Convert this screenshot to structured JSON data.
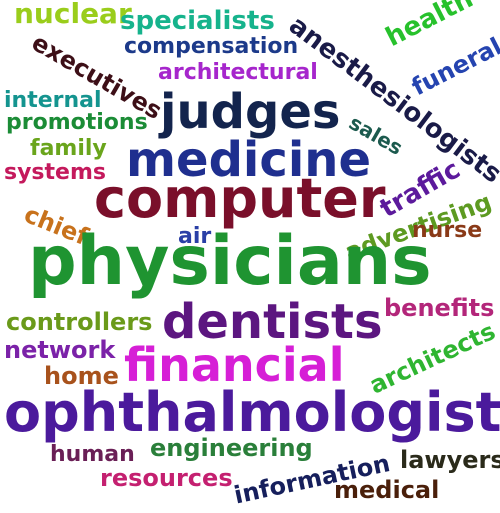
{
  "words": [
    {
      "id": "nuclear",
      "text": "nuclear",
      "color": "#9acd1b"
    },
    {
      "id": "specialists",
      "text": "specialists",
      "color": "#16b38c"
    },
    {
      "id": "health",
      "text": "health",
      "color": "#27c12c"
    },
    {
      "id": "anesthesiologists",
      "text": "anesthesiologists",
      "color": "#1a1b48"
    },
    {
      "id": "funeral",
      "text": "funeral",
      "color": "#2544b0"
    },
    {
      "id": "executives",
      "text": "executives",
      "color": "#3d0f17"
    },
    {
      "id": "compensation",
      "text": "compensation",
      "color": "#1c3a8a"
    },
    {
      "id": "architectural",
      "text": "architectural",
      "color": "#a626cc"
    },
    {
      "id": "internal",
      "text": "internal",
      "color": "#14948f"
    },
    {
      "id": "judges",
      "text": "judges",
      "color": "#13244d"
    },
    {
      "id": "promotions",
      "text": "promotions",
      "color": "#1b8c36"
    },
    {
      "id": "sales",
      "text": "sales",
      "color": "#1c5a4e"
    },
    {
      "id": "family",
      "text": "family",
      "color": "#6aa51c"
    },
    {
      "id": "medicine",
      "text": "medicine",
      "color": "#1f2f8f"
    },
    {
      "id": "systems",
      "text": "systems",
      "color": "#c4195c"
    },
    {
      "id": "traffic",
      "text": "traffic",
      "color": "#5c1a9c"
    },
    {
      "id": "computer",
      "text": "computer",
      "color": "#7a0f2a"
    },
    {
      "id": "chief",
      "text": "chief",
      "color": "#c8721c"
    },
    {
      "id": "advertising",
      "text": "advertising",
      "color": "#5d9a21"
    },
    {
      "id": "air",
      "text": "air",
      "color": "#2a3fa6"
    },
    {
      "id": "nurse",
      "text": "nurse",
      "color": "#8a3a18"
    },
    {
      "id": "physicians",
      "text": "physicians",
      "color": "#1f9431"
    },
    {
      "id": "benefits",
      "text": "benefits",
      "color": "#b3267a"
    },
    {
      "id": "controllers",
      "text": "controllers",
      "color": "#6a9a1a"
    },
    {
      "id": "dentists",
      "text": "dentists",
      "color": "#5c1680"
    },
    {
      "id": "architects",
      "text": "architects",
      "color": "#2fb531"
    },
    {
      "id": "network",
      "text": "network",
      "color": "#7b22a8"
    },
    {
      "id": "financial",
      "text": "financial",
      "color": "#d61fd6"
    },
    {
      "id": "home",
      "text": "home",
      "color": "#a8521c"
    },
    {
      "id": "ophthalmologists",
      "text": "ophthalmologists",
      "color": "#4b1a9c"
    },
    {
      "id": "human",
      "text": "human",
      "color": "#6a1f56"
    },
    {
      "id": "engineering",
      "text": "engineering",
      "color": "#2a7f3a"
    },
    {
      "id": "lawyers",
      "text": "lawyers",
      "color": "#2a2a1a"
    },
    {
      "id": "resources",
      "text": "resources",
      "color": "#c42070"
    },
    {
      "id": "information",
      "text": "information",
      "color": "#161f5c"
    },
    {
      "id": "medical",
      "text": "medical",
      "color": "#4a1f0a"
    }
  ]
}
